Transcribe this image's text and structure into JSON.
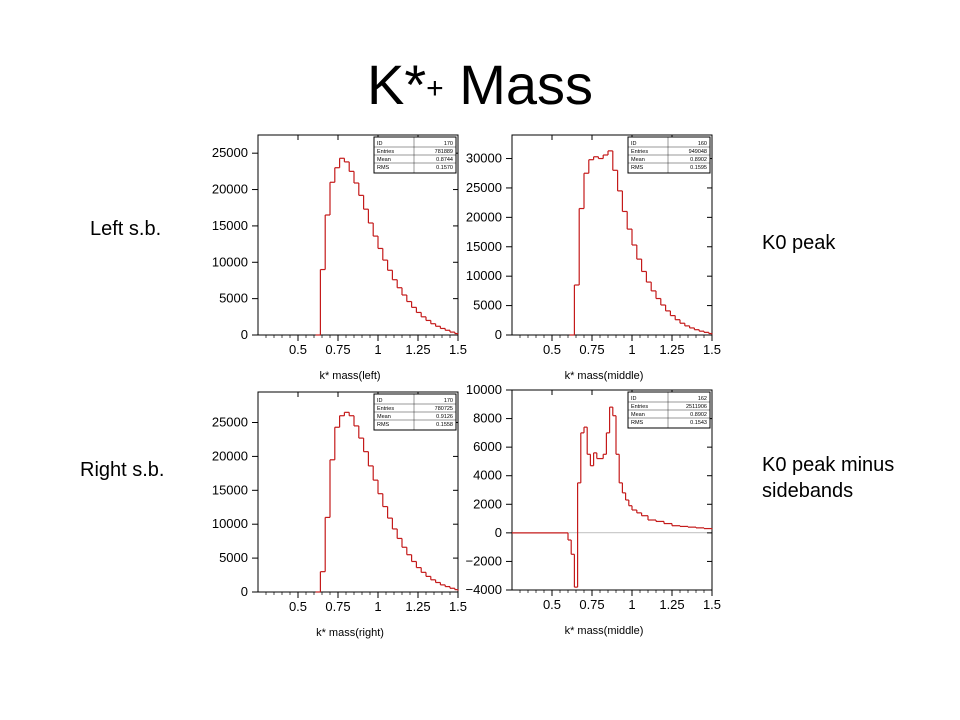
{
  "slide": {
    "title_main": "K*",
    "title_sup": "+",
    "title_tail": " Mass",
    "labels": {
      "left_sb": "Left s.b.",
      "k0_peak": "K0 peak",
      "right_sb": "Right s.b.",
      "k0_minus": "K0 peak minus\nsidebands"
    }
  },
  "colors": {
    "histogram": "#c41a1a",
    "axis": "#000000"
  },
  "chart_data": [
    {
      "type": "histogram",
      "xlabel": "k* mass(left)",
      "xlim": [
        0.25,
        1.5
      ],
      "ylim": [
        0,
        27500
      ],
      "x_ticks": [
        "0.5",
        "0.75",
        "1",
        "1.25",
        "1.5"
      ],
      "y_ticks": [
        "0",
        "5000",
        "10000",
        "15000",
        "20000",
        "25000"
      ],
      "stats": [
        [
          "ID",
          "170"
        ],
        [
          "Entries",
          "781889"
        ],
        [
          "Mean",
          "0.8744"
        ],
        [
          "RMS",
          "0.1570"
        ]
      ],
      "x": [
        0.61,
        0.64,
        0.67,
        0.7,
        0.73,
        0.76,
        0.79,
        0.82,
        0.85,
        0.88,
        0.91,
        0.94,
        0.97,
        1.0,
        1.03,
        1.06,
        1.09,
        1.12,
        1.15,
        1.18,
        1.21,
        1.24,
        1.27,
        1.3,
        1.33,
        1.36,
        1.39,
        1.42,
        1.45,
        1.48,
        1.5
      ],
      "values": [
        0,
        9000,
        16500,
        21000,
        23000,
        24300,
        23800,
        22500,
        20900,
        19200,
        17300,
        15400,
        13600,
        11900,
        10300,
        8900,
        7600,
        6500,
        5500,
        4600,
        3800,
        3100,
        2500,
        2000,
        1550,
        1200,
        900,
        650,
        400,
        200,
        100
      ]
    },
    {
      "type": "histogram",
      "xlabel": "k* mass(middle)",
      "xlim": [
        0.25,
        1.5
      ],
      "ylim": [
        0,
        34000
      ],
      "x_ticks": [
        "0.5",
        "0.75",
        "1",
        "1.25",
        "1.5"
      ],
      "y_ticks": [
        "0",
        "5000",
        "10000",
        "15000",
        "20000",
        "25000",
        "30000"
      ],
      "stats": [
        [
          "ID",
          "160"
        ],
        [
          "Entries",
          "949048"
        ],
        [
          "Mean",
          "0.8902"
        ],
        [
          "RMS",
          "0.1595"
        ]
      ],
      "x": [
        0.61,
        0.64,
        0.67,
        0.7,
        0.73,
        0.76,
        0.79,
        0.82,
        0.85,
        0.88,
        0.91,
        0.94,
        0.97,
        1.0,
        1.03,
        1.06,
        1.09,
        1.12,
        1.15,
        1.18,
        1.21,
        1.24,
        1.27,
        1.3,
        1.33,
        1.36,
        1.39,
        1.42,
        1.45,
        1.48,
        1.5
      ],
      "values": [
        0,
        8500,
        21500,
        27500,
        29800,
        30300,
        30000,
        30600,
        31300,
        28000,
        24500,
        21000,
        18000,
        15300,
        12900,
        10800,
        9000,
        7500,
        6200,
        5100,
        4100,
        3300,
        2600,
        2000,
        1550,
        1200,
        900,
        650,
        450,
        250,
        100
      ]
    },
    {
      "type": "histogram",
      "xlabel": "k* mass(right)",
      "xlim": [
        0.25,
        1.5
      ],
      "ylim": [
        0,
        29500
      ],
      "x_ticks": [
        "0.5",
        "0.75",
        "1",
        "1.25",
        "1.5"
      ],
      "y_ticks": [
        "0",
        "5000",
        "10000",
        "15000",
        "20000",
        "25000"
      ],
      "stats": [
        [
          "ID",
          "170"
        ],
        [
          "Entries",
          "780725"
        ],
        [
          "Mean",
          "0.9126"
        ],
        [
          "RMS",
          "0.1558"
        ]
      ],
      "x": [
        0.61,
        0.64,
        0.67,
        0.7,
        0.73,
        0.76,
        0.79,
        0.82,
        0.85,
        0.88,
        0.91,
        0.94,
        0.97,
        1.0,
        1.03,
        1.06,
        1.09,
        1.12,
        1.15,
        1.18,
        1.21,
        1.24,
        1.27,
        1.3,
        1.33,
        1.36,
        1.39,
        1.42,
        1.45,
        1.48,
        1.5
      ],
      "values": [
        0,
        3000,
        11000,
        19500,
        24300,
        26000,
        26500,
        26000,
        24500,
        22700,
        20700,
        18600,
        16500,
        14500,
        12600,
        10900,
        9300,
        7900,
        6600,
        5500,
        4500,
        3600,
        2900,
        2300,
        1800,
        1400,
        1050,
        800,
        550,
        350,
        200
      ]
    },
    {
      "type": "histogram",
      "xlabel": "k* mass(middle)",
      "xlim": [
        0.25,
        1.5
      ],
      "ylim": [
        -4000,
        10000
      ],
      "x_ticks": [
        "0.5",
        "0.75",
        "1",
        "1.25",
        "1.5"
      ],
      "y_ticks": [
        "-4000",
        "-2000",
        "0",
        "2000",
        "4000",
        "6000",
        "8000",
        "10000"
      ],
      "stats": [
        [
          "ID",
          "162"
        ],
        [
          "Entries",
          "2511906"
        ],
        [
          "Mean",
          "0.8902"
        ],
        [
          "RMS",
          "0.1543"
        ]
      ],
      "x": [
        0.25,
        0.6,
        0.62,
        0.64,
        0.66,
        0.68,
        0.7,
        0.72,
        0.74,
        0.76,
        0.78,
        0.8,
        0.82,
        0.84,
        0.86,
        0.88,
        0.9,
        0.92,
        0.94,
        0.96,
        0.98,
        1.0,
        1.03,
        1.06,
        1.1,
        1.15,
        1.2,
        1.25,
        1.3,
        1.35,
        1.4,
        1.45,
        1.5
      ],
      "values": [
        0,
        -500,
        -1500,
        -3800,
        3500,
        7000,
        7400,
        5500,
        4700,
        5600,
        5200,
        5200,
        5500,
        7000,
        8800,
        8200,
        5500,
        3500,
        2800,
        2300,
        1900,
        1600,
        1400,
        1200,
        900,
        800,
        650,
        500,
        450,
        400,
        350,
        300,
        250
      ]
    }
  ]
}
